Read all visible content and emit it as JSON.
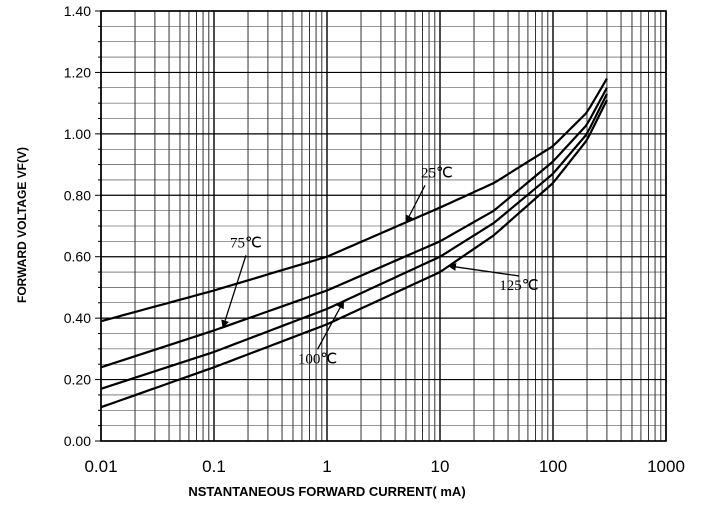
{
  "chart_data": {
    "type": "line",
    "title": "",
    "xlabel": "NSTANTANEOUS FORWARD CURRENT( mA)",
    "ylabel": "FORWARD VOLTAGE  VF(V)",
    "xscale": "log",
    "xlim": [
      0.01,
      1000
    ],
    "ylim": [
      0.0,
      1.4
    ],
    "grid": true,
    "x_tick_labels": [
      "0.01",
      "0.1",
      "1",
      "10",
      "100",
      "1000"
    ],
    "y_tick_labels": [
      "0.00",
      "0.20",
      "0.40",
      "0.60",
      "0.80",
      "1.00",
      "1.20",
      "1.40"
    ],
    "series": [
      {
        "name": "25℃",
        "x": [
          0.01,
          0.1,
          1,
          10,
          30,
          100,
          200,
          300
        ],
        "y": [
          0.39,
          0.49,
          0.6,
          0.76,
          0.84,
          0.96,
          1.07,
          1.18
        ]
      },
      {
        "name": "75℃",
        "x": [
          0.01,
          0.1,
          1,
          10,
          30,
          100,
          200,
          300
        ],
        "y": [
          0.24,
          0.36,
          0.49,
          0.65,
          0.75,
          0.91,
          1.03,
          1.15
        ]
      },
      {
        "name": "100℃",
        "x": [
          0.01,
          0.1,
          1,
          10,
          30,
          100,
          200,
          300
        ],
        "y": [
          0.17,
          0.29,
          0.43,
          0.6,
          0.71,
          0.87,
          1.0,
          1.13
        ]
      },
      {
        "name": "125℃",
        "x": [
          0.01,
          0.1,
          1,
          10,
          30,
          100,
          200,
          300
        ],
        "y": [
          0.11,
          0.24,
          0.38,
          0.55,
          0.67,
          0.84,
          0.98,
          1.11
        ]
      }
    ],
    "annotations": [
      {
        "text": "25℃",
        "series": "25℃",
        "at_x": 5
      },
      {
        "text": "75℃",
        "series": "75℃",
        "at_x": 0.12
      },
      {
        "text": "100℃",
        "series": "100℃",
        "at_x": 1.4
      },
      {
        "text": "125℃",
        "series": "125℃",
        "at_x": 12
      }
    ]
  }
}
